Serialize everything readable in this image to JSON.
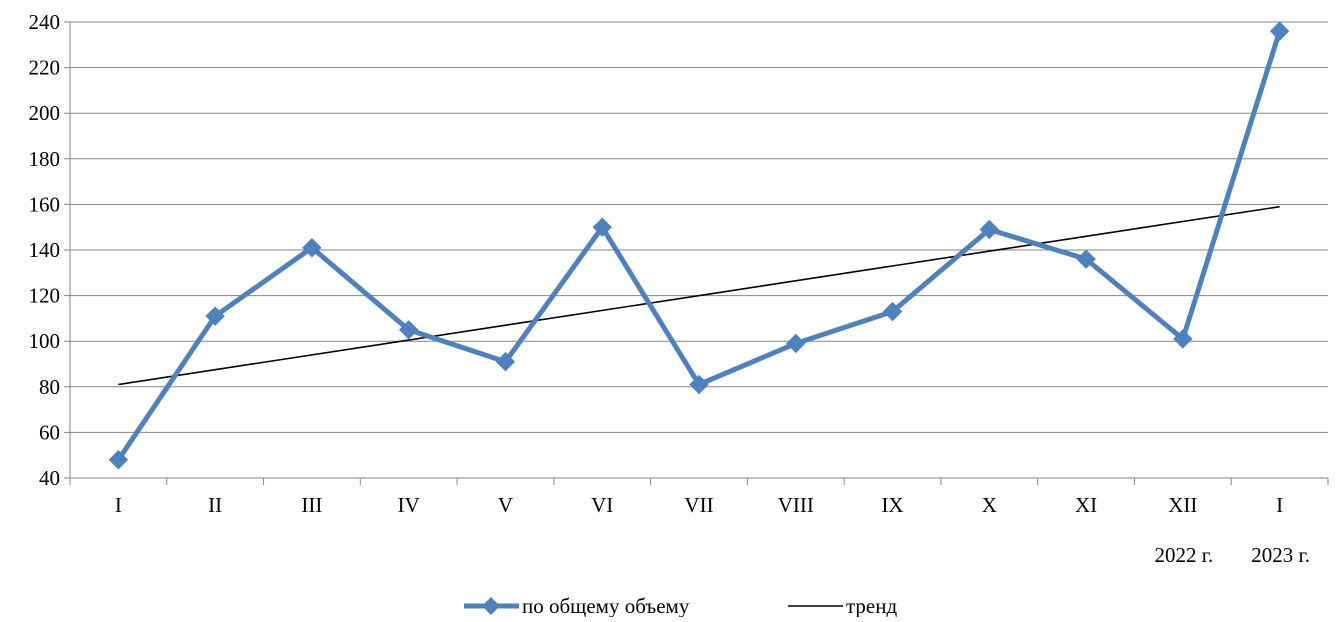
{
  "chart_data": {
    "type": "line",
    "categories": [
      "I",
      "II",
      "III",
      "IV",
      "V",
      "VI",
      "VII",
      "VIII",
      "IX",
      "X",
      "XI",
      "XII",
      "I"
    ],
    "group_labels": [
      {
        "label": "2022 г.",
        "from": 0,
        "to": 11
      },
      {
        "label": "2023 г.",
        "from": 12,
        "to": 12
      }
    ],
    "series": [
      {
        "name": "по общему объему",
        "values": [
          48,
          111,
          141,
          105,
          91,
          150,
          81,
          99,
          113,
          149,
          136,
          101,
          236
        ],
        "color": "#4f81bd",
        "marker": "diamond"
      },
      {
        "name": "тренд",
        "values": [
          81,
          88,
          94,
          101,
          107,
          114,
          120,
          127,
          133,
          139,
          146,
          152,
          159
        ],
        "color": "#000000",
        "marker": "none"
      }
    ],
    "ylim": [
      40,
      240
    ],
    "yticks": [
      "40",
      "60",
      "80",
      "100",
      "120",
      "140",
      "160",
      "180",
      "200",
      "220",
      "240"
    ],
    "grid": true,
    "legend_position": "bottom"
  }
}
